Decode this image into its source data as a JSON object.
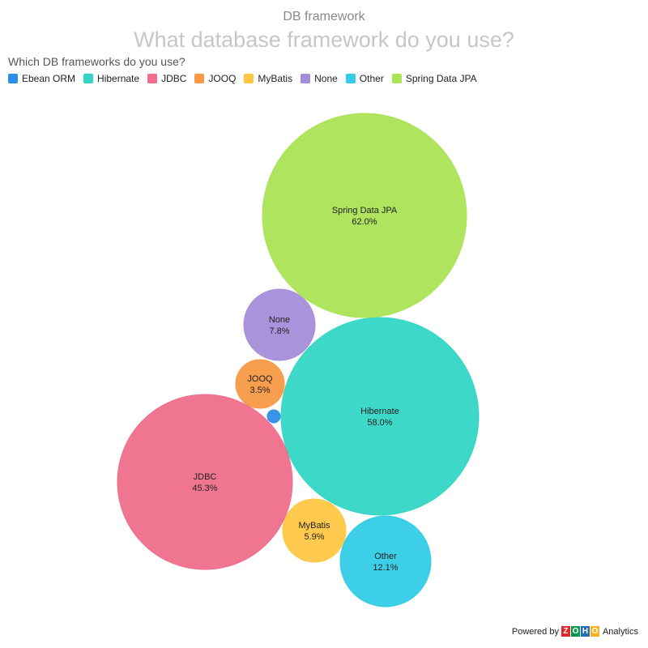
{
  "header": {
    "supertitle": "DB framework",
    "title": "What database framework do you use?"
  },
  "chart_data": {
    "type": "bubble",
    "legend_title": "Which DB frameworks do you use?",
    "legend_position": "top-left",
    "items": [
      {
        "name": "Ebean ORM",
        "value": null,
        "label": "",
        "color": "#2e8de6"
      },
      {
        "name": "Hibernate",
        "value": 58.0,
        "label": "58.0%",
        "color": "#33d6c4"
      },
      {
        "name": "JDBC",
        "value": 45.3,
        "label": "45.3%",
        "color": "#ee6e8b"
      },
      {
        "name": "JOOQ",
        "value": 3.5,
        "label": "3.5%",
        "color": "#f79a46"
      },
      {
        "name": "MyBatis",
        "value": 5.9,
        "label": "5.9%",
        "color": "#ffc743"
      },
      {
        "name": "None",
        "value": 7.8,
        "label": "7.8%",
        "color": "#a68dd9"
      },
      {
        "name": "Other",
        "value": 12.1,
        "label": "12.1%",
        "color": "#33cce6"
      },
      {
        "name": "Spring Data JPA",
        "value": 62.0,
        "label": "62.0%",
        "color": "#abe356"
      }
    ]
  },
  "footer": {
    "powered_by": "Powered by",
    "brand_letters": [
      "Z",
      "O",
      "H",
      "O"
    ],
    "brand_colors": [
      "#e42527",
      "#089949",
      "#226db4",
      "#f9b21d"
    ],
    "analytics": "Analytics"
  }
}
